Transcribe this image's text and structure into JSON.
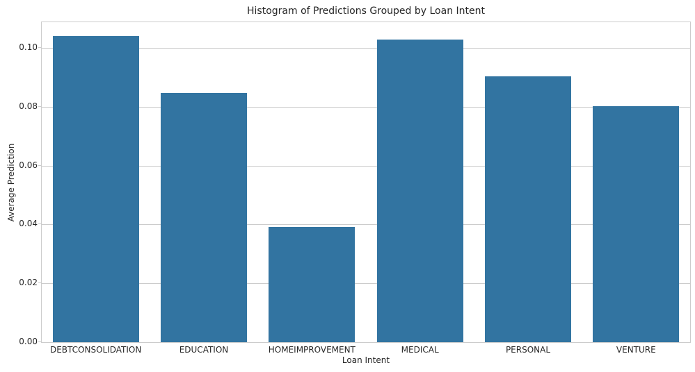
{
  "chart_data": {
    "type": "bar",
    "title": "Histogram of Predictions Grouped by Loan Intent",
    "xlabel": "Loan Intent",
    "ylabel": "Average Prediction",
    "categories": [
      "DEBTCONSOLIDATION",
      "EDUCATION",
      "HOMEIMPROVEMENT",
      "MEDICAL",
      "PERSONAL",
      "VENTURE"
    ],
    "values": [
      0.104,
      0.0846,
      0.0391,
      0.1027,
      0.0903,
      0.0801
    ],
    "ylim": [
      0,
      0.1087
    ],
    "yticks": [
      0,
      0.02,
      0.04,
      0.06,
      0.08,
      0.1
    ],
    "ytick_labels": [
      "0.00",
      "0.02",
      "0.04",
      "0.06",
      "0.08",
      "0.10"
    ],
    "grid": true,
    "legend_position": "none",
    "bar_width_fraction": 0.8,
    "bar_color": "#3274a1",
    "grid_color": "#cccccc",
    "spine_color": "#cccccc",
    "text_color": "#262626",
    "background_color": "#ffffff"
  }
}
